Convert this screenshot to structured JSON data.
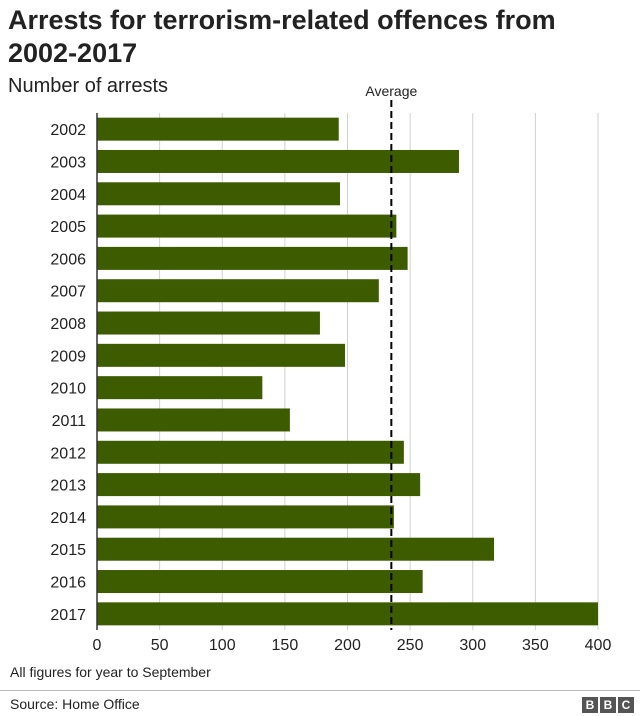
{
  "title": "Arrests for terrorism-related offences from 2002-2017",
  "subtitle": "Number of arrests",
  "note": "All figures for year to September",
  "source": "Source: Home Office",
  "logo": [
    "B",
    "B",
    "C"
  ],
  "colors": {
    "bar": "#3d5c00",
    "grid": "#d0d0d0",
    "average": "#000000"
  },
  "chart_data": {
    "type": "bar",
    "orientation": "horizontal",
    "categories": [
      "2002",
      "2003",
      "2004",
      "2005",
      "2006",
      "2007",
      "2008",
      "2009",
      "2010",
      "2011",
      "2012",
      "2013",
      "2014",
      "2015",
      "2016",
      "2017"
    ],
    "values": [
      193,
      289,
      194,
      239,
      248,
      225,
      178,
      198,
      132,
      154,
      245,
      258,
      237,
      317,
      260,
      400
    ],
    "xlim": [
      0,
      400
    ],
    "xticks": [
      0,
      50,
      100,
      150,
      200,
      250,
      300,
      350,
      400
    ],
    "average": {
      "label": "Average",
      "value": 235
    },
    "grid": true
  }
}
